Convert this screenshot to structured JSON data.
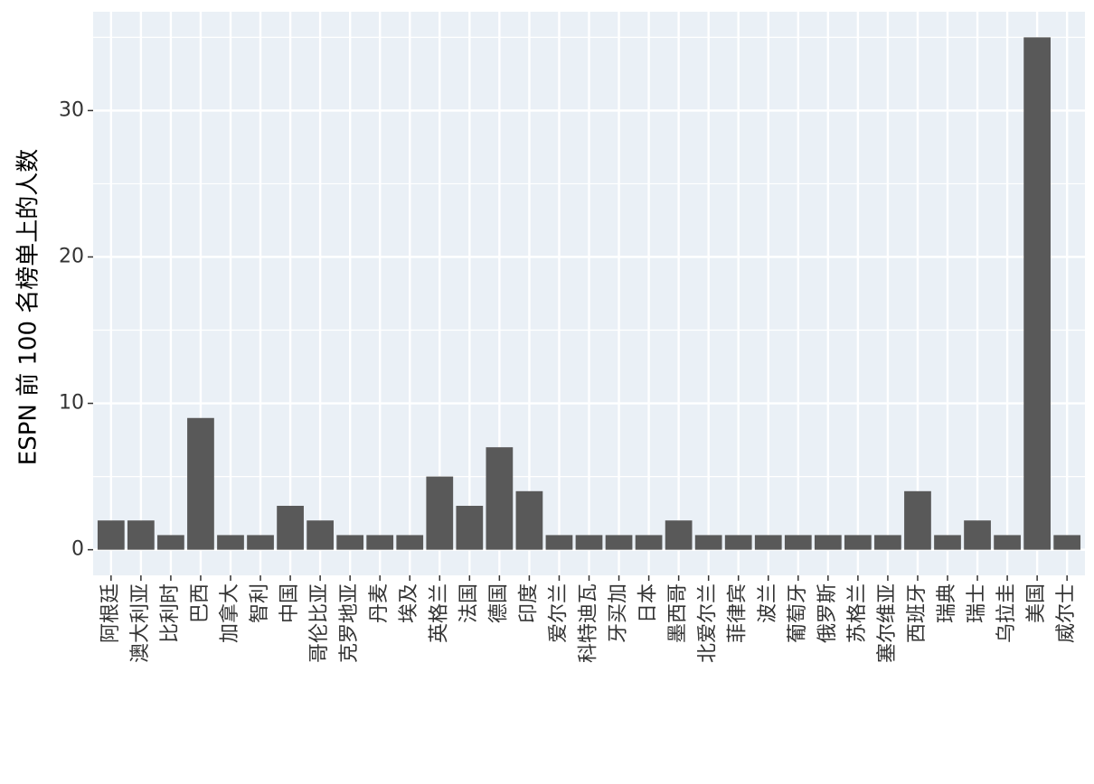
{
  "chart_data": {
    "type": "bar",
    "y_label": "ESPN 前 100 名榜单上的人数",
    "categories": [
      "阿根廷",
      "澳大利亚",
      "比利时",
      "巴西",
      "加拿大",
      "智利",
      "中国",
      "哥伦比亚",
      "克罗地亚",
      "丹麦",
      "埃及",
      "英格兰",
      "法国",
      "德国",
      "印度",
      "爱尔兰",
      "科特迪瓦",
      "牙买加",
      "日本",
      "墨西哥",
      "北爱尔兰",
      "菲律宾",
      "波兰",
      "葡萄牙",
      "俄罗斯",
      "苏格兰",
      "塞尔维亚",
      "西班牙",
      "瑞典",
      "瑞士",
      "乌拉圭",
      "美国",
      "威尔士"
    ],
    "values": [
      2,
      2,
      1,
      9,
      1,
      1,
      3,
      2,
      1,
      1,
      1,
      5,
      3,
      7,
      4,
      1,
      1,
      1,
      1,
      2,
      1,
      1,
      1,
      1,
      1,
      1,
      1,
      4,
      1,
      2,
      1,
      35,
      1
    ],
    "color": "#595959",
    "ylim": [
      -1.75,
      36.75
    ],
    "yticks": [
      0,
      10,
      20,
      30
    ],
    "grid": true
  }
}
